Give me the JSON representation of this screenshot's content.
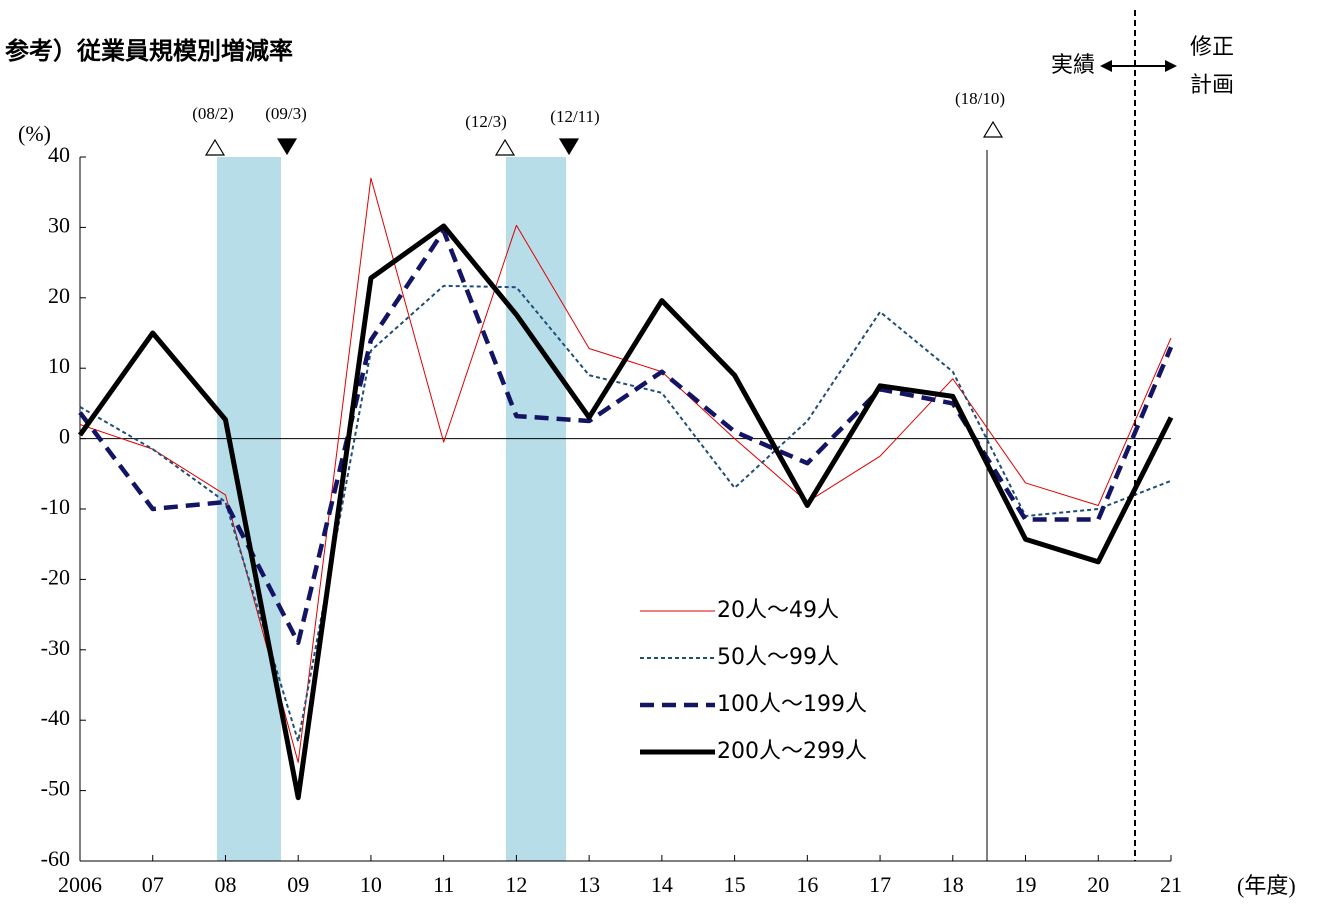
{
  "chart_data": {
    "type": "line",
    "title": "参考）従業員規模別増減率",
    "y_label": "(%)",
    "x_label": "(年度)",
    "categories": [
      "2006",
      "07",
      "08",
      "09",
      "10",
      "11",
      "12",
      "13",
      "14",
      "15",
      "16",
      "17",
      "18",
      "19",
      "20",
      "21"
    ],
    "ylim": [
      -60,
      40
    ],
    "yticks": [
      -60,
      -50,
      -40,
      -30,
      -20,
      -10,
      0,
      10,
      20,
      30,
      40
    ],
    "annotations": [
      "(08/2)",
      "(09/3)",
      "(12/3)",
      "(12/11)",
      "(18/10)"
    ],
    "period_labels": {
      "actual": "実績",
      "revised_1": "修正",
      "revised_2": "計画"
    },
    "series": [
      {
        "name": "20人〜49人",
        "color": "#e00000",
        "values": [
          2,
          -1.5,
          -8,
          -46,
          37,
          -0.5,
          30.3,
          12.8,
          9.5,
          0,
          -9,
          -2.5,
          8.5,
          -6.3,
          -9.5,
          14.3
        ]
      },
      {
        "name": "50人〜99人",
        "color": "#1f4e79",
        "values": [
          4.5,
          -1.5,
          -9,
          -43,
          12.5,
          21.7,
          21.5,
          9,
          6.5,
          -7,
          2.5,
          18,
          9.5,
          -11,
          -10,
          -6
        ]
      },
      {
        "name": "100人〜199人",
        "color": "#141464",
        "values": [
          3.7,
          -10,
          -9,
          -29,
          14,
          29.5,
          3.2,
          2.5,
          9.5,
          1,
          -3.5,
          7,
          5,
          -11.5,
          -11.5,
          13
        ]
      },
      {
        "name": "200人〜299人",
        "color": "#000000",
        "values": [
          0.5,
          15,
          2.7,
          -51,
          22.8,
          30.2,
          17.6,
          3,
          19.6,
          9,
          -9.5,
          7.5,
          6,
          -14.3,
          -17.5,
          3
        ]
      }
    ]
  }
}
